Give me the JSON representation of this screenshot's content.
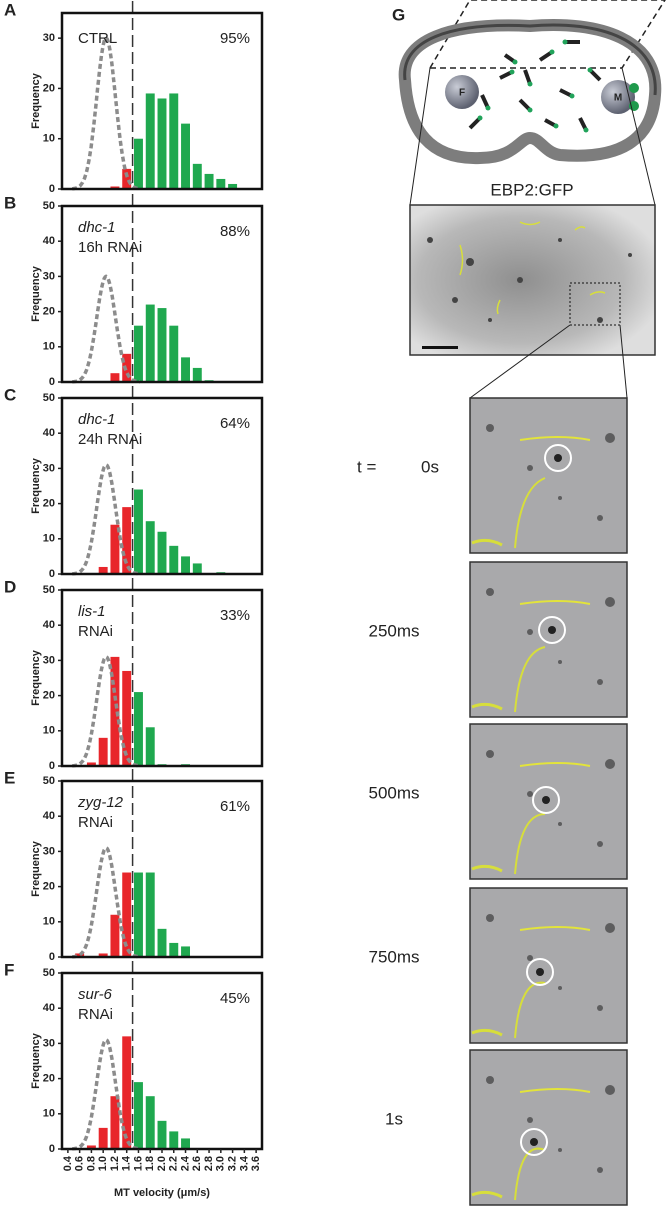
{
  "chart_data": [
    {
      "type": "histogram",
      "label": "A",
      "condition": "CTRL",
      "percent": "95%",
      "bins": [
        0.5,
        0.7,
        0.9,
        1.1,
        1.3,
        1.5,
        1.7,
        1.9,
        2.1,
        2.3,
        2.5,
        2.7,
        2.9,
        3.1,
        3.3
      ],
      "values": [
        0,
        0,
        0,
        0.5,
        4,
        10,
        19,
        18,
        19,
        13,
        5,
        3,
        2,
        1
      ],
      "threshold": 1.5,
      "color_below": "#e8262b",
      "color_above": "#1fa84f",
      "fit": {
        "mean": 1.05,
        "sd": 0.16,
        "peak": 30,
        "color": "#8c8c8c"
      },
      "xlim": [
        0.3,
        3.7
      ],
      "ylim": [
        0,
        35
      ],
      "yticks": [
        0,
        10,
        20,
        30
      ],
      "y_label": "Frequency"
    },
    {
      "type": "histogram",
      "label": "B",
      "gene": "dhc-1",
      "treatment": "16h RNAi",
      "percent": "88%",
      "bins": [
        0.5,
        0.7,
        0.9,
        1.1,
        1.3,
        1.5,
        1.7,
        1.9,
        2.1,
        2.3,
        2.5,
        2.7,
        2.9,
        3.1,
        3.3
      ],
      "values": [
        0,
        0,
        0,
        2.5,
        8,
        16,
        22,
        21,
        16,
        7,
        4,
        0.5,
        0,
        0
      ],
      "threshold": 1.5,
      "color_below": "#e8262b",
      "color_above": "#1fa84f",
      "fit": {
        "mean": 1.05,
        "sd": 0.16,
        "peak": 30,
        "color": "#8c8c8c"
      },
      "xlim": [
        0.3,
        3.7
      ],
      "ylim": [
        0,
        50
      ],
      "yticks": [
        0,
        10,
        20,
        30,
        40,
        50
      ],
      "y_label": "Frequency"
    },
    {
      "type": "histogram",
      "label": "C",
      "gene": "dhc-1",
      "treatment": "24h RNAi",
      "percent": "64%",
      "bins": [
        0.5,
        0.7,
        0.9,
        1.1,
        1.3,
        1.5,
        1.7,
        1.9,
        2.1,
        2.3,
        2.5,
        2.7,
        2.9,
        3.1,
        3.3
      ],
      "values": [
        0,
        0,
        2,
        14,
        19,
        24,
        15,
        12,
        8,
        5,
        3,
        0,
        0.5,
        0
      ],
      "threshold": 1.5,
      "color_below": "#e8262b",
      "color_above": "#1fa84f",
      "fit": {
        "mean": 1.05,
        "sd": 0.16,
        "peak": 31,
        "color": "#8c8c8c"
      },
      "xlim": [
        0.3,
        3.7
      ],
      "ylim": [
        0,
        50
      ],
      "yticks": [
        0,
        10,
        20,
        30,
        40,
        50
      ],
      "y_label": "Frequency"
    },
    {
      "type": "histogram",
      "label": "D",
      "gene": "lis-1",
      "treatment": "RNAi",
      "percent": "33%",
      "bins": [
        0.5,
        0.7,
        0.9,
        1.1,
        1.3,
        1.5,
        1.7,
        1.9,
        2.1,
        2.3,
        2.5,
        2.7,
        2.9,
        3.1,
        3.3
      ],
      "values": [
        0,
        1,
        8,
        31,
        27,
        21,
        11,
        0.5,
        0,
        0.5,
        0,
        0,
        0,
        0
      ],
      "threshold": 1.5,
      "color_below": "#e8262b",
      "color_above": "#1fa84f",
      "fit": {
        "mean": 1.05,
        "sd": 0.16,
        "peak": 31,
        "color": "#8c8c8c"
      },
      "xlim": [
        0.3,
        3.7
      ],
      "ylim": [
        0,
        50
      ],
      "yticks": [
        0,
        10,
        20,
        30,
        40,
        50
      ],
      "y_label": "Frequency"
    },
    {
      "type": "histogram",
      "label": "E",
      "gene": "zyg-12",
      "treatment": "RNAi",
      "percent": "61%",
      "bins": [
        0.5,
        0.7,
        0.9,
        1.1,
        1.3,
        1.5,
        1.7,
        1.9,
        2.1,
        2.3,
        2.5,
        2.7,
        2.9,
        3.1,
        3.3
      ],
      "values": [
        1,
        0,
        1,
        12,
        24,
        24,
        24,
        8,
        4,
        3,
        0,
        0,
        0,
        0
      ],
      "threshold": 1.5,
      "color_below": "#e8262b",
      "color_above": "#1fa84f",
      "fit": {
        "mean": 1.05,
        "sd": 0.16,
        "peak": 31,
        "color": "#8c8c8c"
      },
      "xlim": [
        0.3,
        3.7
      ],
      "ylim": [
        0,
        50
      ],
      "yticks": [
        0,
        10,
        20,
        30,
        40,
        50
      ],
      "y_label": "Frequency"
    },
    {
      "type": "histogram",
      "label": "F",
      "gene": "sur-6",
      "treatment": "RNAi",
      "percent": "45%",
      "bins": [
        0.5,
        0.7,
        0.9,
        1.1,
        1.3,
        1.5,
        1.7,
        1.9,
        2.1,
        2.3,
        2.5,
        2.7,
        2.9,
        3.1,
        3.3
      ],
      "values": [
        0,
        1,
        6,
        15,
        32,
        19,
        15,
        8,
        5,
        3,
        0,
        0,
        0,
        0
      ],
      "threshold": 1.5,
      "color_below": "#e8262b",
      "color_above": "#1fa84f",
      "fit": {
        "mean": 1.05,
        "sd": 0.16,
        "peak": 31,
        "color": "#8c8c8c"
      },
      "xlim": [
        0.3,
        3.7
      ],
      "ylim": [
        0,
        50
      ],
      "yticks": [
        0,
        10,
        20,
        30,
        40,
        50
      ],
      "y_label": "Frequency",
      "xticks": [
        0.4,
        0.6,
        0.8,
        {
          "value": 1,
          "label": "1.0"
        },
        1.2,
        1.4,
        1.6,
        1.8,
        {
          "value": 2,
          "label": "2.0"
        },
        2.2,
        2.4,
        2.6,
        2.8,
        {
          "value": 3,
          "label": "3.0"
        },
        3.2,
        3.4,
        3.6
      ],
      "x_label": "MT velocity (μm/s)"
    }
  ],
  "schematic": {
    "label": "G",
    "nuclei": [
      "F",
      "M"
    ],
    "caption": "EBP2:GFP"
  },
  "timelapse": {
    "prefix": "t =",
    "times": [
      "0s",
      "250ms",
      "500ms",
      "750ms",
      "1s"
    ]
  }
}
